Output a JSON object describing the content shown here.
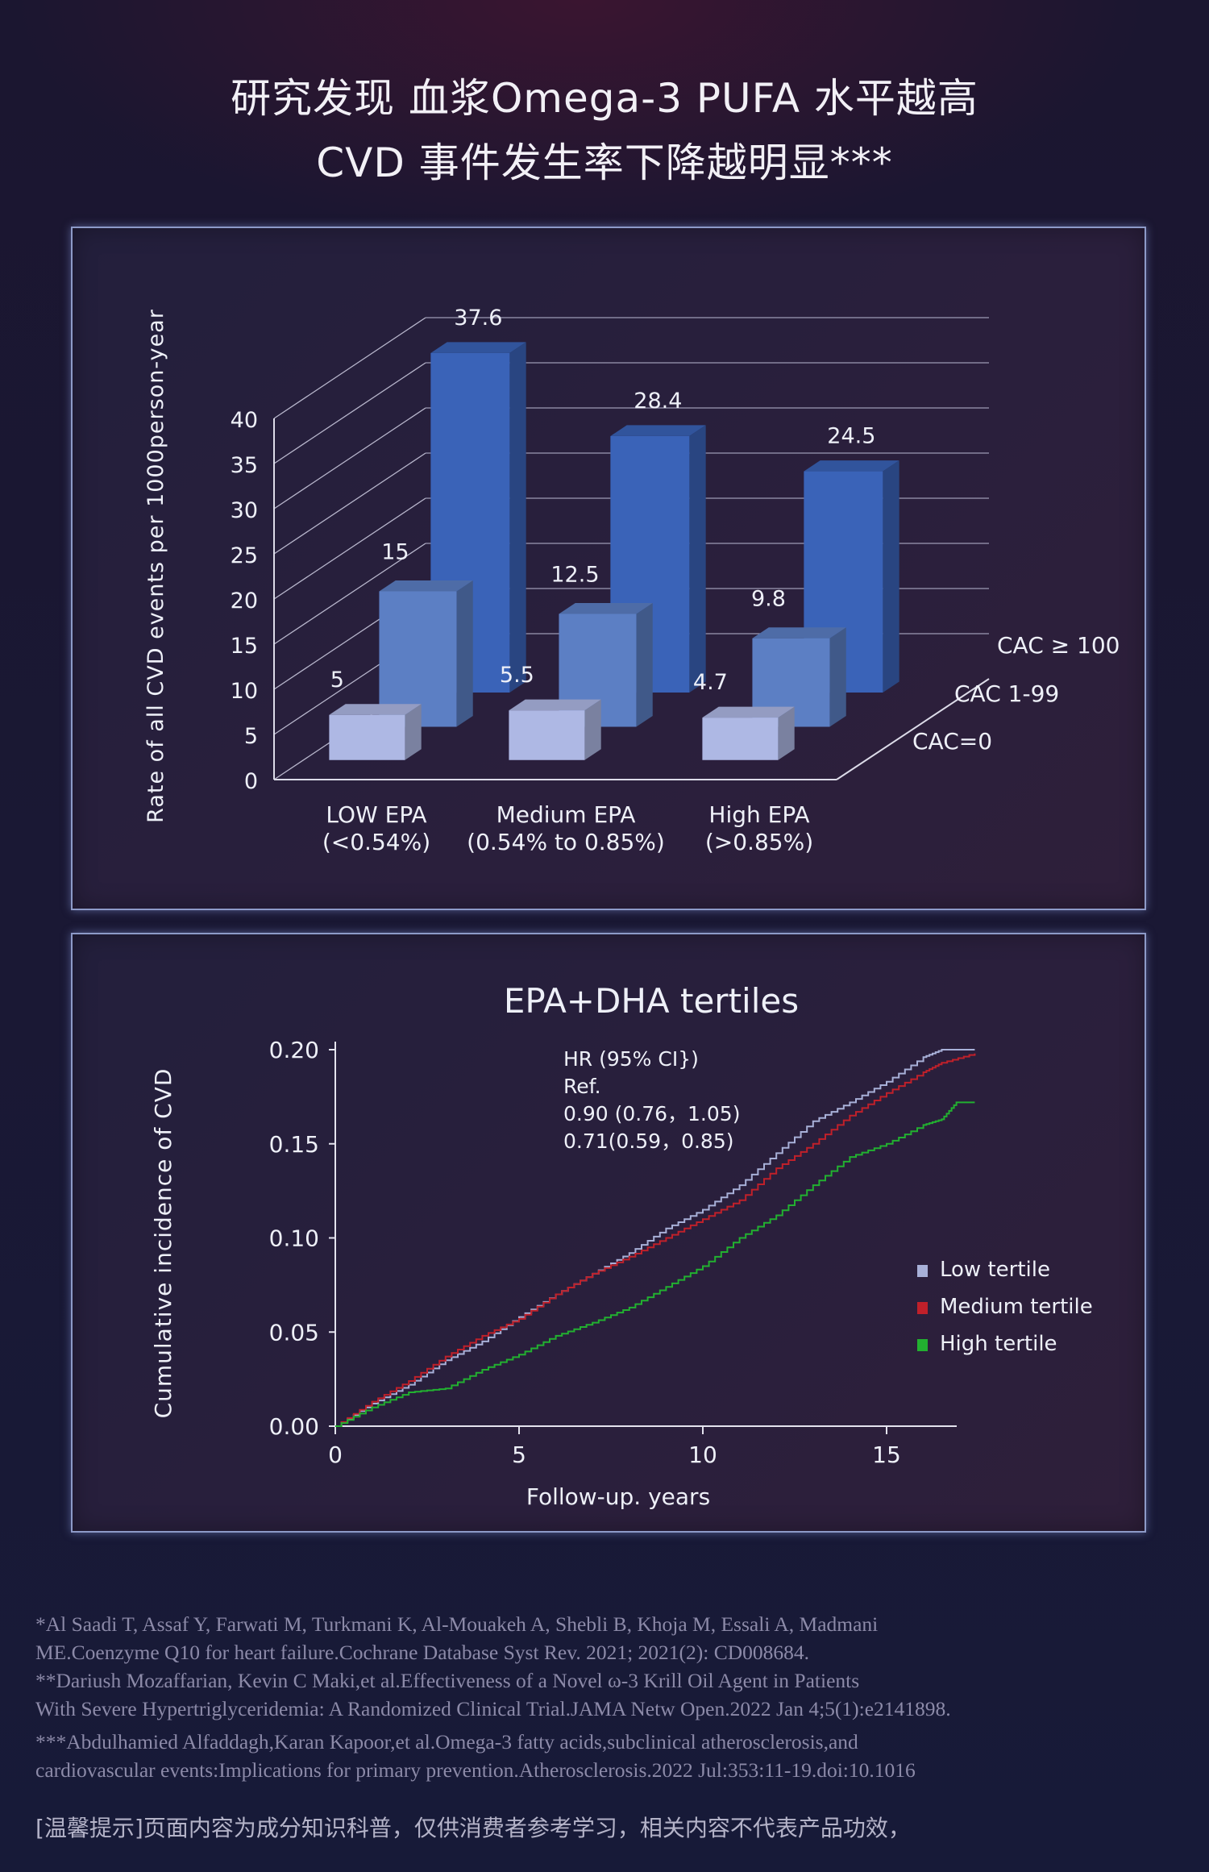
{
  "header": {
    "line1": "研究发现 血浆Omega-3 PUFA 水平越高",
    "line2": "CVD 事件发生率下降越明显***"
  },
  "chart_data": [
    {
      "type": "bar",
      "subtype": "3d-grouped",
      "title": "",
      "ylabel": "Rate of all CVD events per 1000person-year",
      "xlabel": "",
      "ylim": [
        0,
        40
      ],
      "yticks": [
        0,
        5,
        10,
        15,
        20,
        25,
        30,
        35,
        40
      ],
      "categories": [
        {
          "line1": "LOW EPA",
          "line2": "(<0.54%)"
        },
        {
          "line1": "Medium EPA",
          "line2": "(0.54% to 0.85%)"
        },
        {
          "line1": "High EPA",
          "line2": "(>0.85%)"
        }
      ],
      "series": [
        {
          "name": "CAC=0",
          "values": [
            5,
            5.5,
            4.7
          ],
          "labels": [
            "5",
            "5.5",
            "4.7"
          ],
          "color": "#aeb8e4"
        },
        {
          "name": "CAC 1-99",
          "values": [
            15,
            12.5,
            9.8
          ],
          "labels": [
            "15",
            "12.5",
            "9.8"
          ],
          "color": "#5c7fc4"
        },
        {
          "name": "CAC ≥ 100",
          "values": [
            37.6,
            28.4,
            24.5
          ],
          "labels": [
            "37.6",
            "28.4",
            "24.5"
          ],
          "color": "#3a63b8"
        }
      ],
      "grid": true
    },
    {
      "type": "line",
      "title": "EPA+DHA tertiles",
      "xlabel": "Follow-up. years",
      "ylabel": "Cumulative incidence of CVD",
      "xlim": [
        0,
        17
      ],
      "ylim": [
        0,
        0.2
      ],
      "xticks": [
        "0",
        "5",
        "10",
        "15"
      ],
      "yticks": [
        "0.00",
        "0.05",
        "0.10",
        "0.15",
        "0.20"
      ],
      "annotation": [
        "HR (95% CI})",
        "Ref.",
        "0.90 (0.76，1.05)",
        "0.71(0.59，0.85)"
      ],
      "legend_position": "right",
      "series": [
        {
          "name": "Low tertile",
          "color": "#a8b0d8",
          "x": [
            0,
            1,
            2,
            3,
            4,
            5,
            6,
            7,
            8,
            9,
            10,
            11,
            12,
            13,
            14,
            15,
            16,
            16.5,
            17.4
          ],
          "y": [
            0,
            0.012,
            0.022,
            0.035,
            0.045,
            0.058,
            0.07,
            0.081,
            0.092,
            0.105,
            0.115,
            0.128,
            0.145,
            0.162,
            0.172,
            0.183,
            0.196,
            0.2,
            0.2
          ]
        },
        {
          "name": "Medium tertile",
          "color": "#c0202a",
          "x": [
            0,
            1,
            2,
            3,
            4,
            5,
            6,
            7,
            8,
            9,
            10,
            11,
            12,
            13,
            14,
            15,
            16,
            16.5,
            17.4
          ],
          "y": [
            0,
            0.013,
            0.024,
            0.037,
            0.048,
            0.057,
            0.07,
            0.081,
            0.09,
            0.1,
            0.11,
            0.12,
            0.137,
            0.15,
            0.165,
            0.177,
            0.188,
            0.193,
            0.198
          ]
        },
        {
          "name": "High tertile",
          "color": "#22b030",
          "x": [
            0,
            1,
            2,
            3,
            4,
            5,
            6,
            7,
            8,
            9,
            10,
            11,
            12,
            13,
            14,
            15,
            16,
            16.5,
            16.9,
            17.4
          ],
          "y": [
            0,
            0.01,
            0.018,
            0.02,
            0.03,
            0.038,
            0.048,
            0.055,
            0.063,
            0.074,
            0.085,
            0.1,
            0.112,
            0.128,
            0.143,
            0.15,
            0.16,
            0.163,
            0.172,
            0.172
          ]
        }
      ]
    }
  ],
  "references": [
    "*Al Saadi T, Assaf Y, Farwati M, Turkmani K, Al-Mouakeh A, Shebli B, Khoja M, Essali A, Madmani",
    "ME.Coenzyme Q10 for heart failure.Cochrane Database Syst Rev. 2021; 2021(2): CD008684.",
    "**Dariush Mozaffarian, Kevin C Maki,et al.Effectiveness of a Novel ω-3 Krill Oil Agent in Patients",
    "With Severe Hypertriglyceridemia: A Randomized Clinical Trial.JAMA Netw Open.2022 Jan 4;5(1):e2141898.",
    "***Abdulhamied Alfaddagh,Karan Kapoor,et al.Omega-3 fatty acids,subclinical atherosclerosis,and",
    "cardiovascular events:Implications for primary prevention.Atherosclerosis.2022 Jul:353:11-19.doi:10.1016"
  ],
  "disclaimer": "[温馨提示]页面内容为成分知识科普，仅供消费者参考学习，相关内容不代表产品功效，"
}
